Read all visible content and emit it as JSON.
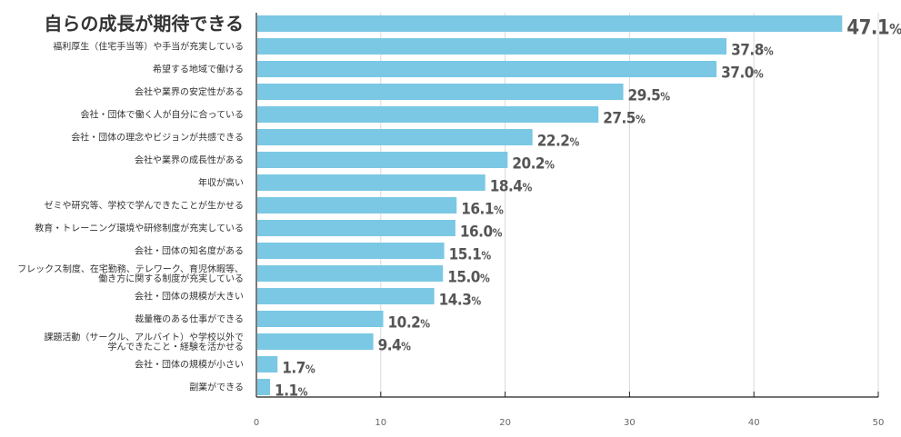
{
  "chart_data": {
    "type": "bar",
    "orientation": "horizontal",
    "categories": [
      "自らの成長が期待できる",
      "福利厚生（住宅手当等）や手当が充実している",
      "希望する地域で働ける",
      "会社や業界の安定性がある",
      "会社・団体で働く人が自分に合っている",
      "会社・団体の理念やビジョンが共感できる",
      "会社や業界の成長性がある",
      "年収が高い",
      "ゼミや研究等、学校で学んできたことが生かせる",
      "教育・トレーニング環境や研修制度が充実している",
      "会社・団体の知名度がある",
      [
        "フレックス制度、在宅勤務、テレワーク、育児休暇等、",
        "働き方に関する制度が充実している"
      ],
      "会社・団体の規模が大きい",
      "裁量権のある仕事ができる",
      [
        "課題活動（サークル、アルバイト）や学校以外で",
        "学んできたこと・経験を活かせる"
      ],
      "会社・団体の規模が小さい",
      "副業ができる"
    ],
    "values": [
      47.1,
      37.8,
      37.0,
      29.5,
      27.5,
      22.2,
      20.2,
      18.4,
      16.1,
      16.0,
      15.1,
      15.0,
      14.3,
      10.2,
      9.4,
      1.7,
      1.1
    ],
    "value_labels": [
      "47.1",
      "37.8",
      "37.0",
      "29.5",
      "27.5",
      "22.2",
      "20.2",
      "18.4",
      "16.1",
      "16.0",
      "15.1",
      "15.0",
      "14.3",
      "10.2",
      "9.4",
      "1.7",
      "1.1"
    ],
    "value_unit": "%",
    "highlight_index": 0,
    "xlim": [
      0,
      50
    ],
    "x_ticks": [
      0,
      10,
      20,
      30,
      40,
      50
    ],
    "xlabel": "",
    "ylabel": "",
    "grid": "vertical",
    "colors": {
      "bar": "#7AC8E4",
      "highlight": "#E8138A",
      "value_text": "#555555",
      "label_text": "#333333",
      "axis": "#222222",
      "grid": "#d8d8d8"
    }
  }
}
